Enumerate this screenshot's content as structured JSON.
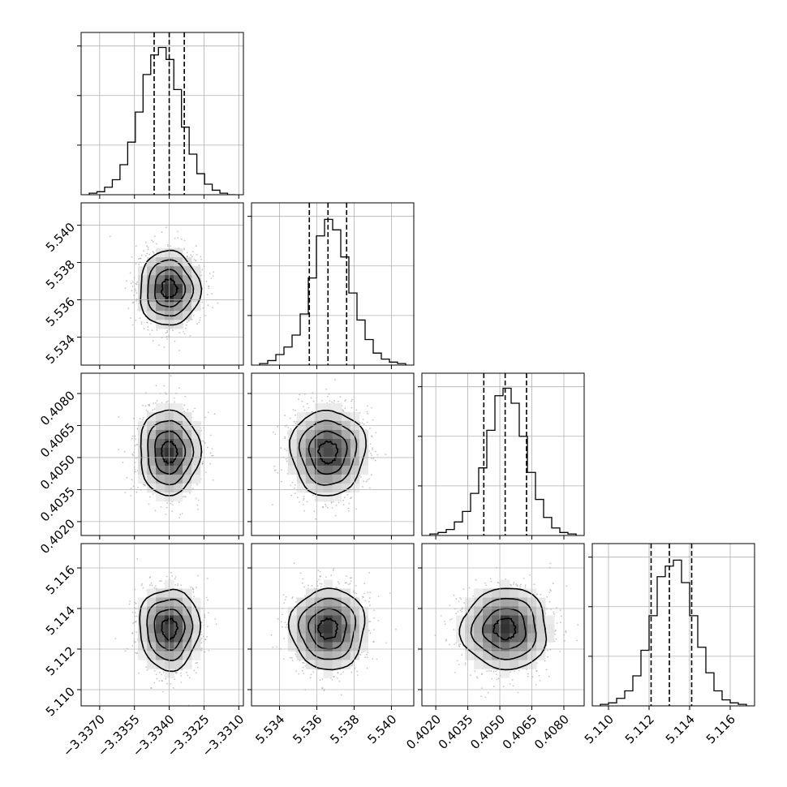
{
  "chart_data": {
    "type": "corner",
    "grid": true,
    "parameters": [
      {
        "range": [
          -3.3378,
          -3.3308
        ],
        "ticks": [
          -3.337,
          -3.3355,
          -3.334,
          -3.3325,
          -3.331
        ],
        "tick_labels": [
          "−3.3370",
          "−3.3355",
          "−3.3340",
          "−3.3325",
          "−3.3310"
        ],
        "quantiles": [
          -3.33465,
          -3.334,
          -3.33335
        ],
        "hist_max": 1.0,
        "hist_values": [
          0.01,
          0.02,
          0.05,
          0.1,
          0.2,
          0.35,
          0.55,
          0.8,
          0.93,
          0.98,
          0.9,
          0.7,
          0.45,
          0.27,
          0.14,
          0.07,
          0.03,
          0.01,
          0.0
        ]
      },
      {
        "range": [
          5.5325,
          5.5412
        ],
        "ticks": [
          5.534,
          5.536,
          5.538,
          5.54
        ],
        "tick_labels": [
          "5.534",
          "5.536",
          "5.538",
          "5.540"
        ],
        "quantiles": [
          5.5356,
          5.5366,
          5.5376
        ],
        "hist_max": 1.0,
        "hist_values": [
          0.01,
          0.03,
          0.07,
          0.12,
          0.2,
          0.34,
          0.58,
          0.86,
          0.97,
          0.9,
          0.72,
          0.48,
          0.3,
          0.17,
          0.08,
          0.04,
          0.02,
          0.01
        ]
      },
      {
        "range": [
          0.40135,
          0.40895
        ],
        "ticks": [
          0.402,
          0.4035,
          0.405,
          0.4065,
          0.408
        ],
        "tick_labels": [
          "0.4020",
          "0.4035",
          "0.4050",
          "0.4065",
          "0.4080"
        ],
        "quantiles": [
          0.40425,
          0.40525,
          0.40625
        ],
        "hist_max": 1.0,
        "hist_values": [
          0.01,
          0.02,
          0.04,
          0.09,
          0.16,
          0.28,
          0.45,
          0.7,
          0.93,
          0.98,
          0.88,
          0.66,
          0.42,
          0.24,
          0.12,
          0.05,
          0.02,
          0.01
        ]
      },
      {
        "range": [
          5.1092,
          5.1172
        ],
        "ticks": [
          5.11,
          5.112,
          5.114,
          5.116
        ],
        "tick_labels": [
          "5.110",
          "5.112",
          "5.114",
          "5.116"
        ],
        "quantiles": [
          5.1121,
          5.113,
          5.1141
        ],
        "hist_max": 1.0,
        "hist_values": [
          0.01,
          0.02,
          0.05,
          0.1,
          0.2,
          0.37,
          0.6,
          0.86,
          0.93,
          0.97,
          0.82,
          0.6,
          0.39,
          0.22,
          0.1,
          0.04,
          0.02,
          0.01
        ]
      }
    ],
    "correlation": [
      [
        1,
        0,
        0,
        0
      ],
      [
        0,
        1,
        0,
        0
      ],
      [
        0,
        0,
        1,
        0
      ],
      [
        0,
        0,
        0,
        1
      ]
    ],
    "contour_levels_sigma": [
      0.5,
      1.0,
      1.5,
      2.0
    ]
  }
}
